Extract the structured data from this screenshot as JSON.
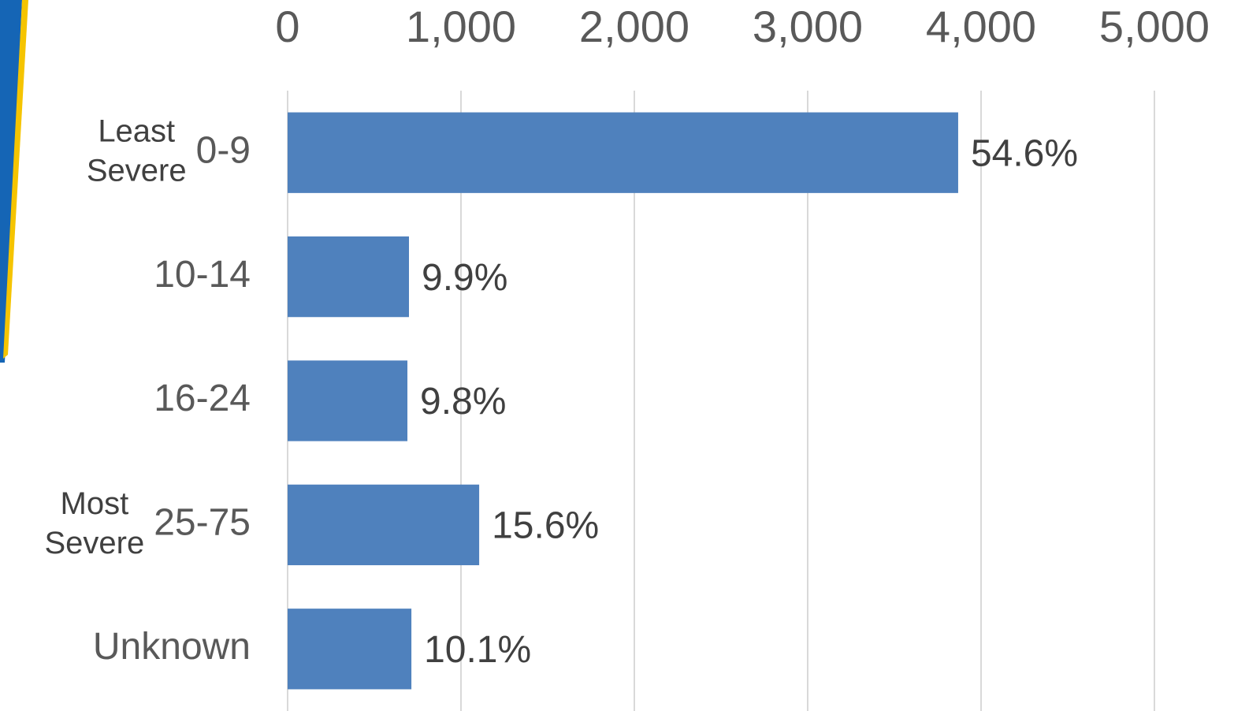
{
  "chart_data": {
    "type": "barh",
    "categories": [
      "0-9",
      "10-14",
      "16-24",
      "25-75",
      "Unknown"
    ],
    "values": [
      3868,
      700,
      691,
      1105,
      714
    ],
    "share_labels": [
      "54.6%",
      "9.9%",
      "9.8%",
      "15.6%",
      "10.1%"
    ],
    "color": "#4f81bd",
    "xlim": [
      0,
      5000
    ],
    "xticks": [
      0,
      {
        "value": 1000,
        "label": "1,000"
      },
      {
        "value": 2000,
        "label": "2,000"
      },
      {
        "value": 3000,
        "label": "3,000"
      },
      {
        "value": 4000,
        "label": "4,000"
      },
      {
        "value": 5000,
        "label": "5,000"
      }
    ],
    "grid": true,
    "annotations": [
      {
        "text": "Least Severe",
        "category": "0-9"
      },
      {
        "text": "Most Severe",
        "category": "25-75"
      }
    ]
  }
}
